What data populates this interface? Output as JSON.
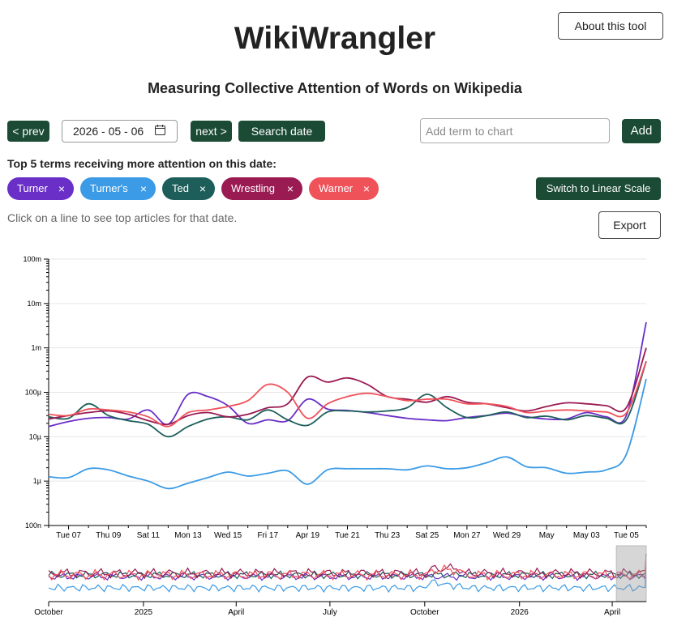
{
  "header": {
    "title": "WikiWrangler",
    "subtitle": "Measuring Collective Attention of Words on Wikipedia",
    "about_label": "About this tool"
  },
  "date_nav": {
    "prev_label": "< prev",
    "date_value": "2026 - 05 - 06",
    "next_label": "next >",
    "search_label": "Search date"
  },
  "term_entry": {
    "placeholder": "Add term to chart",
    "add_label": "Add"
  },
  "top_terms": {
    "label": "Top 5 terms receiving more attention on this date:",
    "chips": [
      {
        "label": "Turner",
        "color": "#6a2fc7"
      },
      {
        "label": "Turner's",
        "color": "#3b9be6"
      },
      {
        "label": "Ted",
        "color": "#1d5e5b"
      },
      {
        "label": "Wrestling",
        "color": "#9a1a52"
      },
      {
        "label": "Warner",
        "color": "#f0525a"
      }
    ],
    "remove_glyph": "×"
  },
  "scale_toggle_label": "Switch to Linear Scale",
  "hint": "Click on a line to see top articles for that date.",
  "export_label": "Export",
  "chart_data": {
    "type": "line",
    "yscale": "log",
    "ylim": [
      1e-07,
      0.1
    ],
    "ytick_labels": [
      "100n",
      "1µ",
      "10µ",
      "100µ",
      "1m",
      "10m",
      "100m"
    ],
    "x": [
      "2026-04-06",
      "2026-04-07",
      "2026-04-08",
      "2026-04-09",
      "2026-04-10",
      "2026-04-11",
      "2026-04-12",
      "2026-04-13",
      "2026-04-14",
      "2026-04-15",
      "2026-04-16",
      "2026-04-17",
      "2026-04-18",
      "2026-04-19",
      "2026-04-20",
      "2026-04-21",
      "2026-04-22",
      "2026-04-23",
      "2026-04-24",
      "2026-04-25",
      "2026-04-26",
      "2026-04-27",
      "2026-04-28",
      "2026-04-29",
      "2026-04-30",
      "2026-05-01",
      "2026-05-02",
      "2026-05-03",
      "2026-05-04",
      "2026-05-05",
      "2026-05-06"
    ],
    "xtick_labels": [
      "Tue 07",
      "Thu 09",
      "Sat 11",
      "Mon 13",
      "Wed 15",
      "Fri 17",
      "Apr 19",
      "Tue 21",
      "Thu 23",
      "Sat 25",
      "Mon 27",
      "Wed 29",
      "May",
      "May 03",
      "Tue 05"
    ],
    "series": [
      {
        "name": "Turner",
        "color": "#6a2fc7",
        "values": [
          1.7e-05,
          2.2e-05,
          2.6e-05,
          2.7e-05,
          2.5e-05,
          4e-05,
          1.9e-05,
          9e-05,
          8e-05,
          5e-05,
          2e-05,
          2.4e-05,
          2.3e-05,
          7e-05,
          4.2e-05,
          3.9e-05,
          3.5e-05,
          3e-05,
          2.6e-05,
          2.4e-05,
          2.3e-05,
          2.7e-05,
          3e-05,
          3.4e-05,
          2.8e-05,
          2.5e-05,
          2.5e-05,
          3.5e-05,
          2.8e-05,
          3e-05,
          0.0038
        ]
      },
      {
        "name": "Turner's",
        "color": "#3b9be6",
        "values": [
          1.25e-06,
          1.2e-06,
          1.9e-06,
          1.8e-06,
          1.3e-06,
          1e-06,
          6.8e-07,
          9e-07,
          1.2e-06,
          1.6e-06,
          1.3e-06,
          1.5e-06,
          1.7e-06,
          8.5e-07,
          1.8e-06,
          1.9e-06,
          1.9e-06,
          1.9e-06,
          1.8e-06,
          2.2e-06,
          1.9e-06,
          2e-06,
          2.6e-06,
          3.5e-06,
          2.1e-06,
          2e-06,
          1.5e-06,
          1.6e-06,
          1.8e-06,
          4e-06,
          0.0002
        ]
      },
      {
        "name": "Ted",
        "color": "#1d5e5b",
        "values": [
          2.8e-05,
          2.6e-05,
          5.5e-05,
          3e-05,
          2.3e-05,
          1.9e-05,
          1e-05,
          1.7e-05,
          2.5e-05,
          2.8e-05,
          2.4e-05,
          4e-05,
          2.4e-05,
          1.8e-05,
          3.6e-05,
          3.8e-05,
          3.6e-05,
          3.8e-05,
          4.5e-05,
          9e-05,
          4.5e-05,
          2.7e-05,
          3e-05,
          3.6e-05,
          2.7e-05,
          2.9e-05,
          2.4e-05,
          3e-05,
          2.6e-05,
          2.4e-05,
          0.0005
        ]
      },
      {
        "name": "Wrestling",
        "color": "#9a1a52",
        "values": [
          2.5e-05,
          3e-05,
          3.5e-05,
          3.8e-05,
          3.2e-05,
          2.3e-05,
          1.9e-05,
          3e-05,
          3.5e-05,
          2.8e-05,
          3.2e-05,
          4.5e-05,
          5.5e-05,
          0.00022,
          0.00017,
          0.00021,
          0.00015,
          8e-05,
          7e-05,
          6e-05,
          8e-05,
          6e-05,
          5.5e-05,
          4.5e-05,
          3.8e-05,
          4.8e-05,
          5.8e-05,
          5.5e-05,
          5e-05,
          4.5e-05,
          0.001
        ]
      },
      {
        "name": "Warner",
        "color": "#f0525a",
        "values": [
          3.2e-05,
          3e-05,
          4.2e-05,
          4e-05,
          3.6e-05,
          2.8e-05,
          1.7e-05,
          3.5e-05,
          4e-05,
          4.8e-05,
          6.5e-05,
          0.00015,
          0.0001,
          2.6e-05,
          5.5e-05,
          8e-05,
          9.5e-05,
          8e-05,
          6.5e-05,
          7e-05,
          7e-05,
          5.5e-05,
          5.5e-05,
          4.8e-05,
          3.5e-05,
          3.8e-05,
          4e-05,
          3.8e-05,
          3.6e-05,
          3.4e-05,
          0.0005
        ]
      }
    ]
  },
  "overview_axis_labels": [
    "October",
    "2025",
    "April",
    "July",
    "October",
    "2026",
    "April"
  ]
}
